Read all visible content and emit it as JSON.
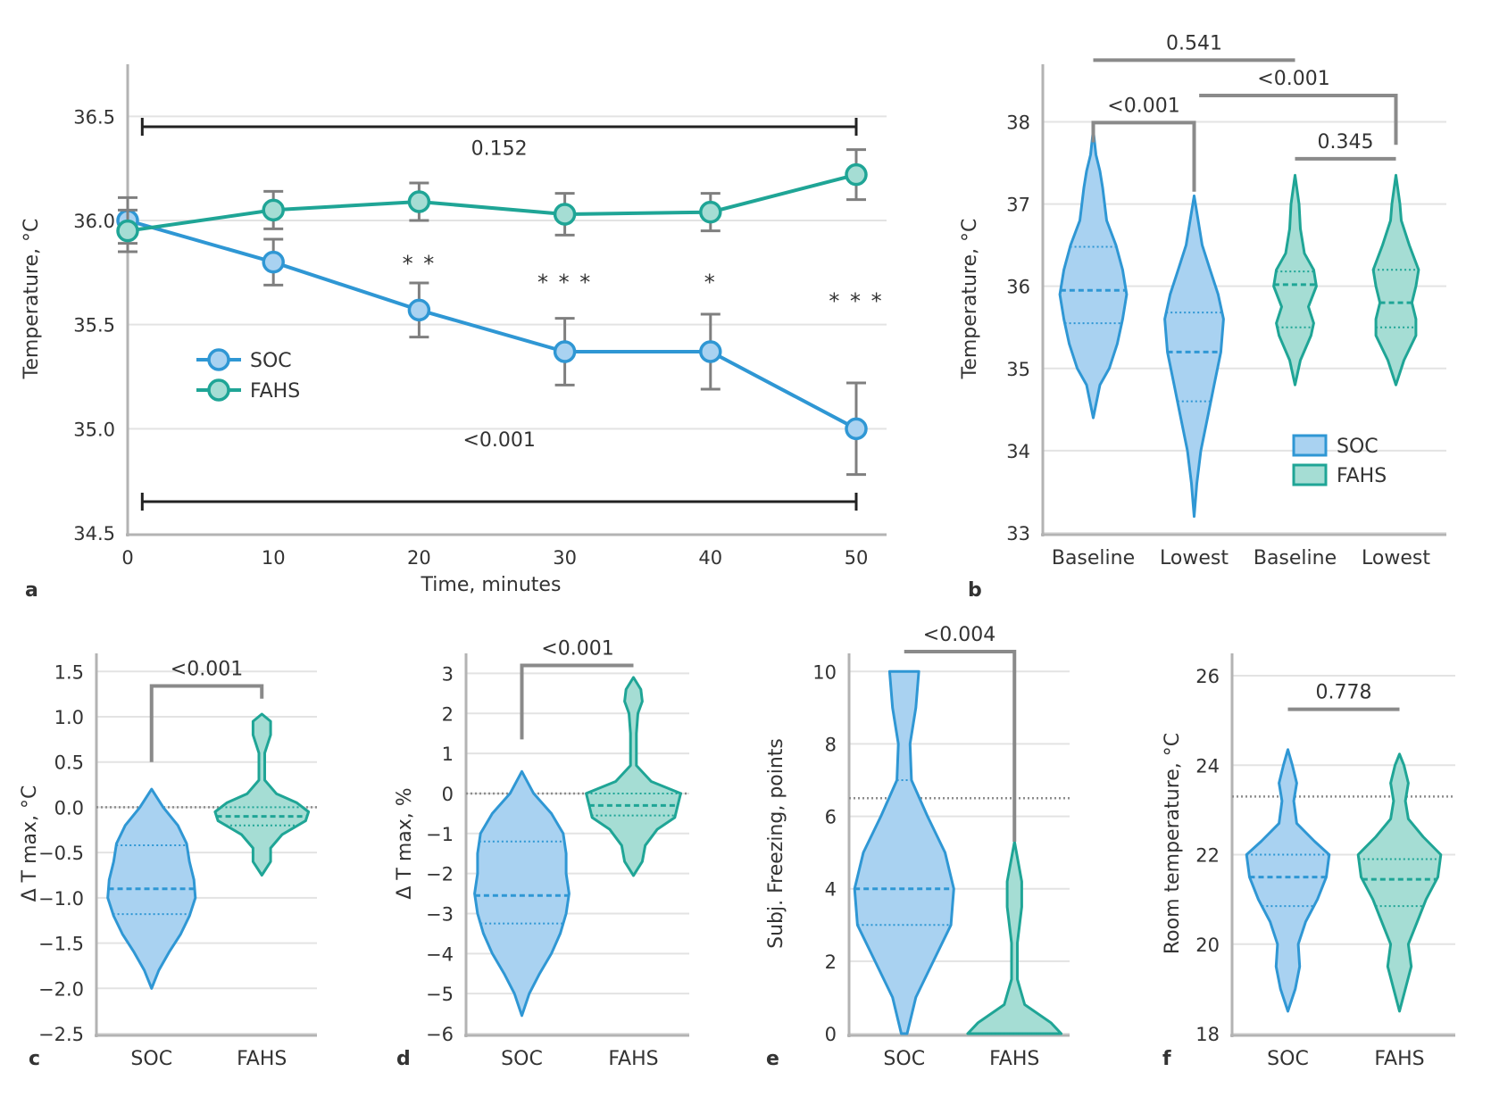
{
  "colors": {
    "soc": "#2f97d4",
    "soc_fill": "#a9d2f1",
    "fahs": "#1fa596",
    "fahs_fill": "#a5ddd4",
    "axis": "#b3b3b3",
    "bracket": "#8a8a8a",
    "text": "#333333"
  },
  "chart_data": [
    {
      "panel": "a",
      "type": "line",
      "xlabel": "Time, minutes",
      "ylabel": "Temperature, °C",
      "xlim": [
        0,
        52
      ],
      "ylim": [
        34.5,
        36.75
      ],
      "x_ticks": [
        0,
        10,
        20,
        30,
        40,
        50
      ],
      "x_tick_labels": [
        "0",
        "10",
        "20",
        "30",
        "40",
        "50"
      ],
      "y_ticks": [
        34.5,
        35.0,
        35.5,
        36.0,
        36.5
      ],
      "y_tick_labels": [
        "34.5",
        "35.0",
        "35.5",
        "36.0",
        "36.5"
      ],
      "grid": true,
      "legend": "left",
      "x": [
        0,
        10,
        20,
        30,
        40,
        50
      ],
      "series": [
        {
          "name": "SOC",
          "color_key": "soc",
          "values": [
            36.0,
            35.8,
            35.57,
            35.37,
            35.37,
            35.0
          ],
          "err": [
            0.11,
            0.11,
            0.13,
            0.16,
            0.18,
            0.22
          ]
        },
        {
          "name": "FAHS",
          "color_key": "fahs",
          "values": [
            35.95,
            36.05,
            36.09,
            36.03,
            36.04,
            36.22
          ],
          "err": [
            0.1,
            0.09,
            0.09,
            0.1,
            0.09,
            0.12
          ]
        }
      ],
      "significance": [
        {
          "x": 20,
          "y": 35.8,
          "label": "* *"
        },
        {
          "x": 30,
          "y": 35.71,
          "label": "* * *"
        },
        {
          "x": 40,
          "y": 35.71,
          "label": "*"
        },
        {
          "x": 50,
          "y": 35.62,
          "label": "* * *"
        }
      ],
      "hbars": [
        {
          "x1": 1,
          "x2": 50,
          "y": 36.45,
          "label": "0.152",
          "label_y": 36.35
        },
        {
          "x1": 1,
          "x2": 50,
          "y": 34.65,
          "label": "<0.001",
          "label_y": 34.95
        }
      ]
    },
    {
      "panel": "b",
      "type": "violin",
      "ylabel": "Temperature, °C",
      "ylim": [
        33,
        38.7
      ],
      "y_ticks": [
        33,
        34,
        35,
        36,
        37,
        38
      ],
      "y_tick_labels": [
        "33",
        "34",
        "35",
        "36",
        "37",
        "38"
      ],
      "categories": [
        "Baseline",
        "Lowest",
        "Baseline",
        "Lowest"
      ],
      "legend": "bottom-right",
      "legend_labels": [
        "SOC",
        "FAHS"
      ],
      "violins": [
        {
          "pos": 0.5,
          "group": "soc",
          "min": 34.4,
          "max": 37.9,
          "median": 35.95,
          "q1": 35.55,
          "q3": 36.48,
          "profile": [
            [
              34.4,
              0
            ],
            [
              34.8,
              0.05
            ],
            [
              35.0,
              0.12
            ],
            [
              35.3,
              0.18
            ],
            [
              35.6,
              0.22
            ],
            [
              35.9,
              0.25
            ],
            [
              36.2,
              0.22
            ],
            [
              36.5,
              0.17
            ],
            [
              36.8,
              0.1
            ],
            [
              37.2,
              0.07
            ],
            [
              37.4,
              0.05
            ],
            [
              37.6,
              0.02
            ],
            [
              37.9,
              0
            ]
          ]
        },
        {
          "pos": 1.5,
          "group": "soc",
          "min": 33.2,
          "max": 37.1,
          "median": 35.2,
          "q1": 34.6,
          "q3": 35.68,
          "profile": [
            [
              33.2,
              0
            ],
            [
              33.6,
              0.02
            ],
            [
              34.0,
              0.05
            ],
            [
              34.4,
              0.1
            ],
            [
              34.8,
              0.15
            ],
            [
              35.2,
              0.2
            ],
            [
              35.6,
              0.22
            ],
            [
              35.9,
              0.18
            ],
            [
              36.2,
              0.12
            ],
            [
              36.5,
              0.06
            ],
            [
              36.8,
              0.03
            ],
            [
              37.1,
              0
            ]
          ]
        },
        {
          "pos": 2.5,
          "group": "fahs",
          "min": 34.8,
          "max": 37.35,
          "median": 36.02,
          "q1": 35.5,
          "q3": 36.18,
          "profile": [
            [
              34.8,
              0
            ],
            [
              35.1,
              0.04
            ],
            [
              35.4,
              0.12
            ],
            [
              35.55,
              0.14
            ],
            [
              35.75,
              0.1
            ],
            [
              36.0,
              0.16
            ],
            [
              36.2,
              0.14
            ],
            [
              36.4,
              0.07
            ],
            [
              36.7,
              0.04
            ],
            [
              37.0,
              0.03
            ],
            [
              37.35,
              0
            ]
          ]
        },
        {
          "pos": 3.5,
          "group": "fahs",
          "min": 34.8,
          "max": 37.35,
          "median": 35.8,
          "q1": 35.5,
          "q3": 36.2,
          "profile": [
            [
              34.8,
              0
            ],
            [
              35.1,
              0.06
            ],
            [
              35.4,
              0.15
            ],
            [
              35.6,
              0.15
            ],
            [
              35.8,
              0.12
            ],
            [
              36.0,
              0.15
            ],
            [
              36.2,
              0.17
            ],
            [
              36.5,
              0.1
            ],
            [
              36.8,
              0.04
            ],
            [
              37.0,
              0.03
            ],
            [
              37.35,
              0
            ]
          ]
        }
      ],
      "brackets": [
        {
          "from": 0.5,
          "to": 2.5,
          "y": 38.75,
          "from_drop": 38.75,
          "to_drop": 38.75,
          "label": "0.541"
        },
        {
          "from": 0.5,
          "to": 1.5,
          "y": 37.99,
          "from_drop": 37.75,
          "to_drop": 37.15,
          "label": "<0.001"
        },
        {
          "from": 1.55,
          "to": 3.5,
          "y": 38.32,
          "from_drop": 38.32,
          "to_drop": 37.72,
          "label": "<0.001",
          "label_at": 2.0
        },
        {
          "from": 2.5,
          "to": 3.5,
          "y": 37.55,
          "from_drop": 37.55,
          "to_drop": 37.55,
          "label": "0.345"
        }
      ]
    },
    {
      "panel": "c",
      "type": "violin",
      "ylabel": "Δ T max, °C",
      "ylim": [
        -2.5,
        1.7
      ],
      "y_ticks": [
        -2.5,
        -2.0,
        -1.5,
        -1.0,
        -0.5,
        0.0,
        0.5,
        1.0,
        1.5
      ],
      "y_tick_labels": [
        "−2.5",
        "−2.0",
        "−1.5",
        "−1.0",
        "−0.5",
        "0.0",
        "0.5",
        "1.0",
        "1.5"
      ],
      "categories": [
        "SOC",
        "FAHS"
      ],
      "dotted_y": 0,
      "violins": [
        {
          "pos": 0.5,
          "group": "soc",
          "min": -2.0,
          "max": 0.2,
          "median": -0.9,
          "q1": -1.18,
          "q3": -0.42,
          "profile": [
            [
              -2.0,
              0
            ],
            [
              -1.8,
              0.05
            ],
            [
              -1.6,
              0.12
            ],
            [
              -1.4,
              0.2
            ],
            [
              -1.2,
              0.26
            ],
            [
              -1.0,
              0.3
            ],
            [
              -0.8,
              0.29
            ],
            [
              -0.6,
              0.26
            ],
            [
              -0.4,
              0.24
            ],
            [
              -0.2,
              0.18
            ],
            [
              0.0,
              0.08
            ],
            [
              0.2,
              0
            ]
          ]
        },
        {
          "pos": 1.5,
          "group": "fahs",
          "min": -0.75,
          "max": 1.03,
          "median": -0.1,
          "q1": -0.2,
          "q3": 0.0,
          "profile": [
            [
              -0.75,
              0
            ],
            [
              -0.6,
              0.06
            ],
            [
              -0.45,
              0.06
            ],
            [
              -0.3,
              0.14
            ],
            [
              -0.15,
              0.3
            ],
            [
              -0.05,
              0.32
            ],
            [
              0.05,
              0.24
            ],
            [
              0.15,
              0.1
            ],
            [
              0.3,
              0.02
            ],
            [
              0.6,
              0.02
            ],
            [
              0.8,
              0.06
            ],
            [
              0.95,
              0.06
            ],
            [
              1.03,
              0
            ]
          ]
        }
      ],
      "brackets": [
        {
          "from": 0.5,
          "to": 1.5,
          "y": 1.34,
          "from_drop": 0.5,
          "to_drop": 1.2,
          "label": "<0.001"
        }
      ]
    },
    {
      "panel": "d",
      "type": "violin",
      "ylabel": "Δ T max, %",
      "ylim": [
        -6,
        3.5
      ],
      "y_ticks": [
        -6,
        -5,
        -4,
        -3,
        -2,
        -1,
        0,
        1,
        2,
        3
      ],
      "y_tick_labels": [
        "−6",
        "−5",
        "−4",
        "−3",
        "−2",
        "−1",
        "0",
        "1",
        "2",
        "3"
      ],
      "categories": [
        "SOC",
        "FAHS"
      ],
      "dotted_y": 0,
      "violins": [
        {
          "pos": 0.5,
          "group": "soc",
          "min": -5.55,
          "max": 0.55,
          "median": -2.55,
          "q1": -3.25,
          "q3": -1.2,
          "profile": [
            [
              -5.55,
              0
            ],
            [
              -5.0,
              0.05
            ],
            [
              -4.5,
              0.12
            ],
            [
              -4.0,
              0.2
            ],
            [
              -3.5,
              0.26
            ],
            [
              -3.0,
              0.3
            ],
            [
              -2.5,
              0.32
            ],
            [
              -2.0,
              0.3
            ],
            [
              -1.5,
              0.3
            ],
            [
              -1.0,
              0.28
            ],
            [
              -0.5,
              0.2
            ],
            [
              0.0,
              0.08
            ],
            [
              0.55,
              0
            ]
          ]
        },
        {
          "pos": 1.5,
          "group": "fahs",
          "min": -2.05,
          "max": 2.9,
          "median": -0.3,
          "q1": -0.55,
          "q3": 0.0,
          "profile": [
            [
              -2.05,
              0
            ],
            [
              -1.7,
              0.06
            ],
            [
              -1.3,
              0.08
            ],
            [
              -0.9,
              0.16
            ],
            [
              -0.6,
              0.28
            ],
            [
              -0.3,
              0.3
            ],
            [
              0.0,
              0.32
            ],
            [
              0.3,
              0.12
            ],
            [
              0.7,
              0.02
            ],
            [
              1.5,
              0.02
            ],
            [
              2.0,
              0.03
            ],
            [
              2.3,
              0.06
            ],
            [
              2.6,
              0.05
            ],
            [
              2.9,
              0
            ]
          ]
        }
      ],
      "brackets": [
        {
          "from": 0.5,
          "to": 1.5,
          "y": 3.2,
          "from_drop": 1.35,
          "to_drop": 3.2,
          "label": "<0.001"
        }
      ]
    },
    {
      "panel": "e",
      "type": "violin",
      "ylabel": "Subj. Freezing, points",
      "ylim": [
        0,
        10.5
      ],
      "y_ticks": [
        0,
        2,
        4,
        6,
        8,
        10
      ],
      "y_tick_labels": [
        "0",
        "2",
        "4",
        "6",
        "8",
        "10"
      ],
      "categories": [
        "SOC",
        "FAHS"
      ],
      "dotted_y": 6.5,
      "violins": [
        {
          "pos": 0.5,
          "group": "soc",
          "min": 0,
          "max": 10,
          "median": 4.0,
          "q1": 3.0,
          "q3": 7.0,
          "profile": [
            [
              0,
              0.02
            ],
            [
              1.0,
              0.08
            ],
            [
              2.0,
              0.2
            ],
            [
              3.0,
              0.32
            ],
            [
              4.0,
              0.34
            ],
            [
              5.0,
              0.28
            ],
            [
              6.0,
              0.16
            ],
            [
              7.0,
              0.05
            ],
            [
              8.0,
              0.04
            ],
            [
              9.0,
              0.08
            ],
            [
              10.0,
              0.1
            ]
          ]
        },
        {
          "pos": 1.5,
          "group": "fahs",
          "min": 0,
          "max": 5.3,
          "median": 0,
          "q1": 0,
          "q3": 0,
          "profile": [
            [
              0,
              0.32
            ],
            [
              0.3,
              0.25
            ],
            [
              0.8,
              0.07
            ],
            [
              1.5,
              0.02
            ],
            [
              2.5,
              0.02
            ],
            [
              3.5,
              0.05
            ],
            [
              4.2,
              0.05
            ],
            [
              5.3,
              0
            ]
          ]
        }
      ],
      "brackets": [
        {
          "from": 0.5,
          "to": 1.5,
          "y": 10.55,
          "from_drop": 10.55,
          "to_drop": 5.3,
          "label": "<0.004"
        }
      ]
    },
    {
      "panel": "f",
      "type": "violin",
      "ylabel": "Room temperature, °C",
      "ylim": [
        18,
        26.5
      ],
      "y_ticks": [
        18,
        20,
        22,
        24,
        26
      ],
      "y_tick_labels": [
        "18",
        "20",
        "22",
        "24",
        "26"
      ],
      "categories": [
        "SOC",
        "FAHS"
      ],
      "dotted_y": 23.3,
      "violins": [
        {
          "pos": 0.5,
          "group": "soc",
          "min": 18.5,
          "max": 24.35,
          "median": 21.5,
          "q1": 20.85,
          "q3": 22.0,
          "profile": [
            [
              18.5,
              0
            ],
            [
              19.0,
              0.05
            ],
            [
              19.5,
              0.08
            ],
            [
              20.0,
              0.07
            ],
            [
              20.5,
              0.12
            ],
            [
              21.0,
              0.2
            ],
            [
              21.5,
              0.26
            ],
            [
              22.0,
              0.28
            ],
            [
              22.3,
              0.18
            ],
            [
              22.7,
              0.06
            ],
            [
              23.2,
              0.04
            ],
            [
              23.6,
              0.06
            ],
            [
              24.0,
              0.03
            ],
            [
              24.35,
              0
            ]
          ]
        },
        {
          "pos": 1.5,
          "group": "fahs",
          "min": 18.5,
          "max": 24.25,
          "median": 21.45,
          "q1": 20.85,
          "q3": 21.9,
          "profile": [
            [
              18.5,
              0
            ],
            [
              19.0,
              0.04
            ],
            [
              19.5,
              0.08
            ],
            [
              20.0,
              0.06
            ],
            [
              20.5,
              0.12
            ],
            [
              21.0,
              0.18
            ],
            [
              21.5,
              0.26
            ],
            [
              22.0,
              0.28
            ],
            [
              22.4,
              0.16
            ],
            [
              22.8,
              0.06
            ],
            [
              23.2,
              0.04
            ],
            [
              23.6,
              0.06
            ],
            [
              24.0,
              0.03
            ],
            [
              24.25,
              0
            ]
          ]
        }
      ],
      "brackets": [
        {
          "from": 0.5,
          "to": 1.5,
          "y": 25.25,
          "from_drop": 25.25,
          "to_drop": 25.25,
          "label": "0.778"
        }
      ]
    }
  ]
}
